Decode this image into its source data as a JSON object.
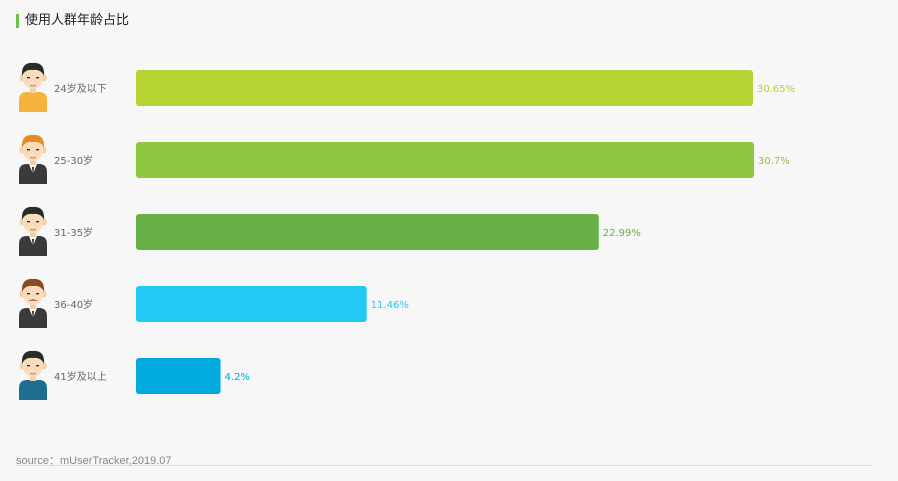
{
  "title": "使用人群年龄占比",
  "source": "source：mUserTracker,2019.07",
  "chart_data": {
    "type": "bar",
    "orientation": "horizontal",
    "title": "使用人群年龄占比",
    "categories": [
      "24岁及以下",
      "25-30岁",
      "31-35岁",
      "36-40岁",
      "41岁及以上"
    ],
    "values": [
      30.65,
      30.7,
      22.99,
      11.46,
      4.2
    ],
    "value_labels": [
      "30.65%",
      "30.7%",
      "22.99%",
      "11.46%",
      "4.2%"
    ],
    "colors": [
      "#b5d334",
      "#8dc63f",
      "#66b045",
      "#22c9f4",
      "#00aadf"
    ],
    "icons": [
      "boy-yellow-shirt-avatar-icon",
      "man-orange-hair-suit-avatar-icon",
      "man-dark-suit-avatar-icon",
      "man-mustache-suit-avatar-icon",
      "man-blue-shirt-avatar-icon"
    ],
    "xlim": [
      0,
      30.7
    ],
    "unit": "%",
    "grid": false,
    "legend": "none"
  }
}
